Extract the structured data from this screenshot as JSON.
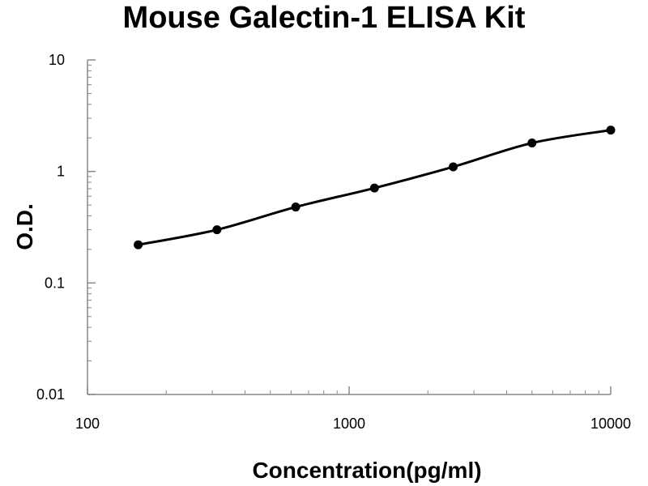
{
  "chart_data": {
    "type": "scatter",
    "title": "Mouse Galectin-1 ELISA Kit",
    "xlabel": "Concentration(pg/ml)",
    "ylabel": "O.D.",
    "x_scale": "log",
    "y_scale": "log",
    "xlim": [
      100,
      10000
    ],
    "ylim": [
      0.01,
      10
    ],
    "x_ticks": [
      {
        "value": 100,
        "label": "100"
      },
      {
        "value": 1000,
        "label": "1000"
      },
      {
        "value": 10000,
        "label": "10000"
      }
    ],
    "y_ticks": [
      {
        "value": 0.01,
        "label": "0.01"
      },
      {
        "value": 0.1,
        "label": "0.1"
      },
      {
        "value": 1,
        "label": "1"
      },
      {
        "value": 10,
        "label": "10"
      }
    ],
    "grid": false,
    "legend": "none",
    "series": [
      {
        "x": [
          156.25,
          312.5,
          625,
          1250,
          2500,
          5000,
          10000
        ],
        "y": [
          0.22,
          0.3,
          0.48,
          0.71,
          1.1,
          1.8,
          2.35
        ],
        "fit_curve": "smooth",
        "color": "#000000"
      }
    ]
  }
}
